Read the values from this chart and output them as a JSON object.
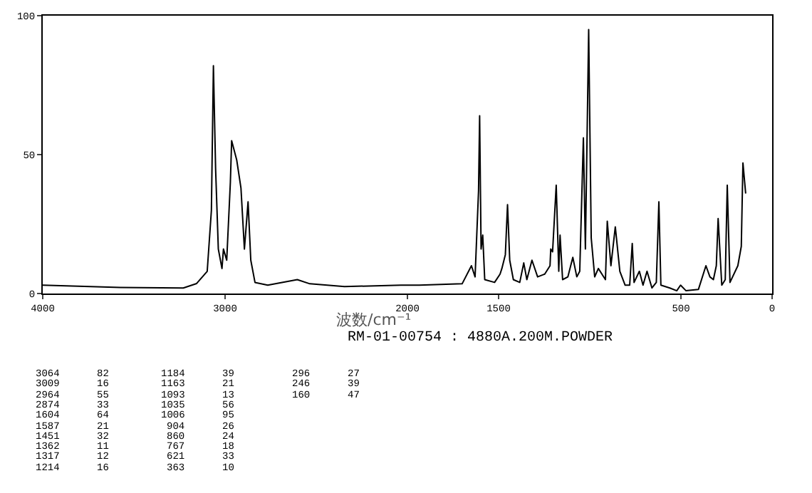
{
  "chart_data": {
    "type": "line",
    "xlabel": "波数/cm⁻¹",
    "x": [
      4000,
      3576,
      3229,
      3156,
      3098,
      3075,
      3064,
      3052,
      3037,
      3017,
      3009,
      2991,
      2971,
      2964,
      2936,
      2913,
      2894,
      2874,
      2859,
      2836,
      2766,
      2604,
      2535,
      2345,
      2035,
      1935,
      1700,
      1649,
      1629,
      1610,
      1604,
      1596,
      1587,
      1576,
      1522,
      1492,
      1482,
      1463,
      1451,
      1439,
      1419,
      1384,
      1362,
      1345,
      1317,
      1286,
      1247,
      1218,
      1214,
      1204,
      1184,
      1170,
      1163,
      1149,
      1120,
      1093,
      1071,
      1055,
      1035,
      1024,
      1006,
      992,
      973,
      953,
      914,
      904,
      884,
      860,
      835,
      806,
      781,
      767,
      757,
      728,
      708,
      686,
      659,
      635,
      621,
      610,
      561,
      523,
      502,
      472,
      404,
      363,
      341,
      322,
      306,
      296,
      276,
      257,
      246,
      231,
      188,
      169,
      160,
      145
    ],
    "series": [
      {
        "color": "#000000",
        "values": [
          3,
          2.2,
          2,
          3.6,
          8,
          30,
          82,
          45,
          16,
          9,
          16,
          12,
          40,
          55,
          48,
          38,
          16,
          33,
          12,
          4,
          3,
          5,
          3.5,
          2.5,
          3,
          3,
          3.5,
          10,
          6,
          37,
          64,
          16,
          21,
          5,
          4,
          7,
          9,
          14,
          32,
          12,
          5,
          4,
          11,
          5,
          12,
          6,
          7,
          10,
          16,
          15,
          39,
          8,
          21,
          5,
          6,
          13,
          6,
          8,
          56,
          16,
          95,
          20,
          6,
          9,
          5,
          26,
          10,
          24,
          8,
          3,
          3,
          18,
          4,
          8,
          3,
          8,
          2,
          4,
          33,
          3,
          2,
          1,
          3,
          1,
          1.5,
          10,
          6,
          5,
          10,
          27,
          3,
          5,
          39,
          4,
          10,
          17,
          47,
          36
        ]
      }
    ],
    "xlim": [
      4000,
      0
    ],
    "xticks": [
      4000,
      3000,
      2000,
      1500,
      500,
      0
    ],
    "ylim": [
      0,
      100
    ],
    "yticks": [
      0,
      50,
      100
    ],
    "marker": "none",
    "line_style": "solid",
    "annotations": [
      "RM-01-00754 : 4880A.200M.POWDER",
      "3064 82",
      "3009 16",
      "2964 55",
      "2874 33",
      "1604 64",
      "1587 21",
      "1451 32",
      "1362 11",
      "1317 12",
      "1214 16",
      "1184 39",
      "1163 21",
      "1093 13",
      "1035 56",
      "1006 95",
      "904 26",
      "860 24",
      "767 18",
      "621 33",
      "363 10",
      "296 27",
      "246 39",
      "160 47"
    ]
  }
}
